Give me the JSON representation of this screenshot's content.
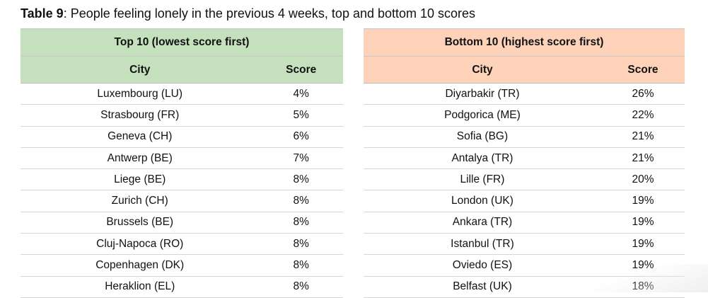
{
  "title": {
    "label": "Table 9",
    "text": ": People feeling lonely in the previous 4 weeks, top and bottom 10 scores"
  },
  "top": {
    "group_header": "Top 10 (lowest score first)",
    "col_city": "City",
    "col_score": "Score",
    "rows": [
      {
        "city": "Luxembourg (LU)",
        "score": "4%"
      },
      {
        "city": "Strasbourg (FR)",
        "score": "5%"
      },
      {
        "city": "Geneva (CH)",
        "score": "6%"
      },
      {
        "city": "Antwerp (BE)",
        "score": "7%"
      },
      {
        "city": "Liege (BE)",
        "score": "8%"
      },
      {
        "city": "Zurich (CH)",
        "score": "8%"
      },
      {
        "city": "Brussels (BE)",
        "score": "8%"
      },
      {
        "city": "Cluj-Napoca (RO)",
        "score": "8%"
      },
      {
        "city": "Copenhagen (DK)",
        "score": "8%"
      },
      {
        "city": "Heraklion (EL)",
        "score": "8%"
      }
    ]
  },
  "bottom": {
    "group_header": "Bottom 10 (highest score first)",
    "col_city": "City",
    "col_score": "Score",
    "rows": [
      {
        "city": "Diyarbakir (TR)",
        "score": "26%"
      },
      {
        "city": "Podgorica (ME)",
        "score": "22%"
      },
      {
        "city": "Sofia (BG)",
        "score": "21%"
      },
      {
        "city": "Antalya (TR)",
        "score": "21%"
      },
      {
        "city": "Lille (FR)",
        "score": "20%"
      },
      {
        "city": "London (UK)",
        "score": "19%"
      },
      {
        "city": "Ankara (TR)",
        "score": "19%"
      },
      {
        "city": "Istanbul (TR)",
        "score": "19%"
      },
      {
        "city": "Oviedo (ES)",
        "score": "19%"
      },
      {
        "city": "Belfast (UK)",
        "score": "18%"
      }
    ]
  },
  "colors": {
    "top_header_bg": "#c5e0bd",
    "bottom_header_bg": "#fdd2b8"
  }
}
